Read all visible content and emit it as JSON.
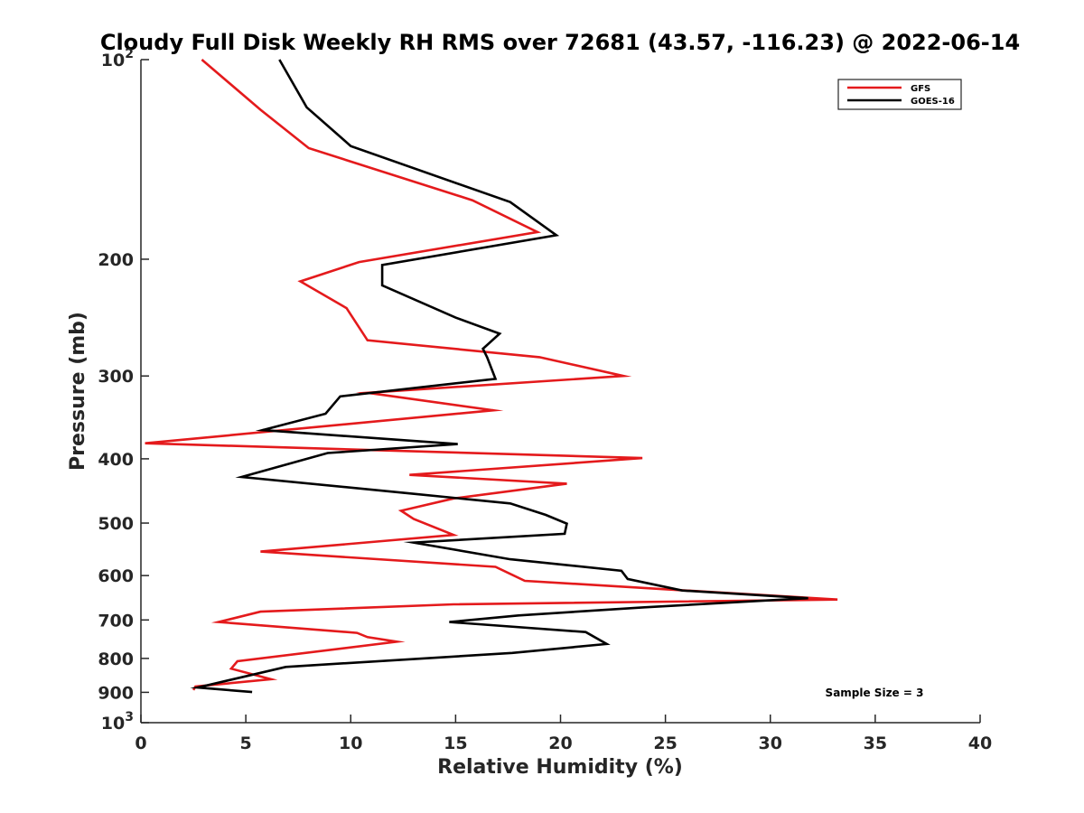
{
  "chart_data": {
    "type": "line",
    "title": "Cloudy Full Disk Weekly RH RMS over 72681 (43.57, -116.23) @ 2022-06-14",
    "xlabel": "Relative Humidity (%)",
    "ylabel": "Pressure (mb)",
    "xlim": [
      0,
      40
    ],
    "ylim": [
      100,
      1000
    ],
    "y_scale": "log",
    "y_reversed": true,
    "grid": false,
    "legend_position": "top-right",
    "x_ticks": [
      0,
      5,
      10,
      15,
      20,
      25,
      30,
      35,
      40
    ],
    "y_ticks": [
      {
        "value": 100,
        "base": "10",
        "exp": "2"
      },
      {
        "value": 200,
        "label": "200"
      },
      {
        "value": 300,
        "label": "300"
      },
      {
        "value": 400,
        "label": "400"
      },
      {
        "value": 500,
        "label": "500"
      },
      {
        "value": 600,
        "label": "600"
      },
      {
        "value": 700,
        "label": "700"
      },
      {
        "value": 800,
        "label": "800"
      },
      {
        "value": 900,
        "label": "900"
      },
      {
        "value": 1000,
        "base": "10",
        "exp": "3"
      }
    ],
    "series": [
      {
        "name": "GFS",
        "color": "#e41a1c",
        "points": [
          [
            2.9,
            100
          ],
          [
            5.7,
            119
          ],
          [
            8.0,
            136
          ],
          [
            15.8,
            163
          ],
          [
            18.9,
            182
          ],
          [
            10.4,
            202
          ],
          [
            7.6,
            216
          ],
          [
            9.8,
            237
          ],
          [
            10.8,
            265
          ],
          [
            19.0,
            281
          ],
          [
            23.0,
            300
          ],
          [
            10.8,
            318
          ],
          [
            16.8,
            338
          ],
          [
            0.2,
            379
          ],
          [
            23.9,
            399
          ],
          [
            12.8,
            423
          ],
          [
            20.3,
            436
          ],
          [
            14.9,
            459
          ],
          [
            12.4,
            479
          ],
          [
            13.0,
            493
          ],
          [
            14.9,
            521
          ],
          [
            5.7,
            552
          ],
          [
            16.9,
            582
          ],
          [
            18.3,
            611
          ],
          [
            33.2,
            652
          ],
          [
            14.9,
            663
          ],
          [
            5.7,
            680
          ],
          [
            3.7,
            705
          ],
          [
            10.3,
            732
          ],
          [
            10.8,
            743
          ],
          [
            12.2,
            755
          ],
          [
            4.6,
            808
          ],
          [
            4.3,
            829
          ],
          [
            6.2,
            860
          ],
          [
            2.6,
            882
          ],
          [
            2.5,
            893
          ]
        ]
      },
      {
        "name": "GOES-16",
        "color": "#000000",
        "points": [
          [
            6.6,
            100
          ],
          [
            7.9,
            118
          ],
          [
            10.0,
            135
          ],
          [
            17.6,
            164
          ],
          [
            19.8,
            184
          ],
          [
            11.5,
            204
          ],
          [
            11.5,
            219
          ],
          [
            15.0,
            245
          ],
          [
            17.1,
            259
          ],
          [
            16.3,
            273
          ],
          [
            16.5,
            281
          ],
          [
            16.9,
            303
          ],
          [
            9.5,
            322
          ],
          [
            8.8,
            342
          ],
          [
            5.8,
            362
          ],
          [
            15.1,
            380
          ],
          [
            8.9,
            392
          ],
          [
            4.8,
            426
          ],
          [
            12.8,
            451
          ],
          [
            17.6,
            467
          ],
          [
            19.3,
            486
          ],
          [
            20.3,
            501
          ],
          [
            20.2,
            519
          ],
          [
            13.0,
            535
          ],
          [
            17.6,
            567
          ],
          [
            22.9,
            590
          ],
          [
            23.2,
            607
          ],
          [
            25.8,
            632
          ],
          [
            31.8,
            649
          ],
          [
            24.0,
            670
          ],
          [
            18.0,
            689
          ],
          [
            14.7,
            705
          ],
          [
            21.2,
            730
          ],
          [
            22.2,
            761
          ],
          [
            17.7,
            785
          ],
          [
            6.9,
            824
          ],
          [
            4.6,
            857
          ],
          [
            2.7,
            885
          ],
          [
            5.3,
            899
          ]
        ]
      }
    ],
    "annotations": [
      {
        "text": "Sample Size = 3",
        "x": 35,
        "y": 895
      }
    ]
  }
}
